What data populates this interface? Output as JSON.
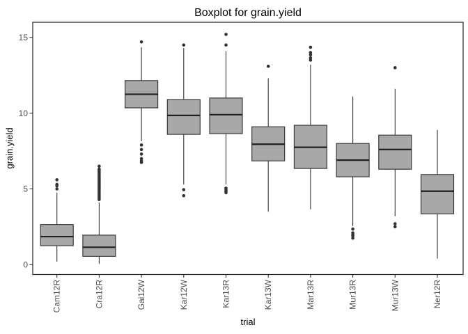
{
  "chart_data": {
    "type": "boxplot",
    "title": "Boxplot for grain.yield",
    "xlabel": "trial",
    "ylabel": "grain.yield",
    "ylim": [
      -0.65,
      16.0
    ],
    "yticks": [
      0,
      5,
      10,
      15
    ],
    "grid": false,
    "legend": false,
    "panel_border": true,
    "x_tick_label_angle": 90,
    "categories": [
      "Cam12R",
      "Cra12R",
      "Gai12W",
      "Kar12W",
      "Kar13R",
      "Kar13W",
      "Mar13R",
      "Mur13R",
      "Mur13W",
      "Ner12R"
    ],
    "series": [
      {
        "name": "Cam12R",
        "low": 0.2,
        "q1": 1.25,
        "median": 1.85,
        "q3": 2.65,
        "high": 4.75,
        "outliers": [
          5.6,
          5.3,
          5.2,
          5.0
        ]
      },
      {
        "name": "Cra12R",
        "low": 0.05,
        "q1": 0.55,
        "median": 1.15,
        "q3": 1.95,
        "high": 4.1,
        "outliers": [
          6.5,
          6.3,
          6.2,
          6.1,
          6.0,
          5.9,
          5.8,
          5.7,
          5.6,
          5.5,
          5.4,
          5.3,
          5.2,
          5.1,
          5.0,
          4.9,
          4.8,
          4.7,
          4.6,
          4.5,
          4.4,
          4.3
        ]
      },
      {
        "name": "Gai12W",
        "low": 8.15,
        "q1": 10.35,
        "median": 11.25,
        "q3": 12.15,
        "high": 14.35,
        "outliers": [
          14.7,
          7.9,
          7.6,
          7.3,
          7.0,
          6.85,
          6.75
        ]
      },
      {
        "name": "Kar12W",
        "low": 5.3,
        "q1": 8.6,
        "median": 9.85,
        "q3": 10.9,
        "high": 14.3,
        "outliers": [
          14.5,
          4.95,
          4.55
        ]
      },
      {
        "name": "Kar13R",
        "low": 5.3,
        "q1": 8.65,
        "median": 9.9,
        "q3": 11.0,
        "high": 14.1,
        "outliers": [
          15.2,
          14.5,
          5.05,
          4.95,
          4.85,
          4.75
        ]
      },
      {
        "name": "Kar13W",
        "low": 3.5,
        "q1": 6.85,
        "median": 7.95,
        "q3": 9.1,
        "high": 12.3,
        "outliers": [
          13.1
        ]
      },
      {
        "name": "Mar13R",
        "low": 3.65,
        "q1": 6.35,
        "median": 7.75,
        "q3": 9.2,
        "high": 13.2,
        "outliers": [
          14.35,
          14.0,
          13.85,
          13.65,
          13.5
        ]
      },
      {
        "name": "Mur13R",
        "low": 2.55,
        "q1": 5.8,
        "median": 6.9,
        "q3": 8.0,
        "high": 11.1,
        "outliers": [
          2.35,
          2.1,
          2.0,
          1.9,
          1.75
        ]
      },
      {
        "name": "Mur13W",
        "low": 3.2,
        "q1": 6.3,
        "median": 7.6,
        "q3": 8.55,
        "high": 11.6,
        "outliers": [
          13.0,
          2.7,
          2.5
        ]
      },
      {
        "name": "Ner12R",
        "low": 0.4,
        "q1": 3.35,
        "median": 4.85,
        "q3": 5.95,
        "high": 8.9,
        "outliers": []
      }
    ],
    "colors": {
      "background": "#ffffff",
      "box_fill": "#a8a8a8",
      "box_stroke": "#333333",
      "median_line": "#1f1f1f",
      "whisker": "#333333",
      "outlier": "#333333",
      "panel_border": "#222222",
      "tick": "#333333",
      "tick_label": "#4d4d4d",
      "text": "#000000"
    }
  }
}
